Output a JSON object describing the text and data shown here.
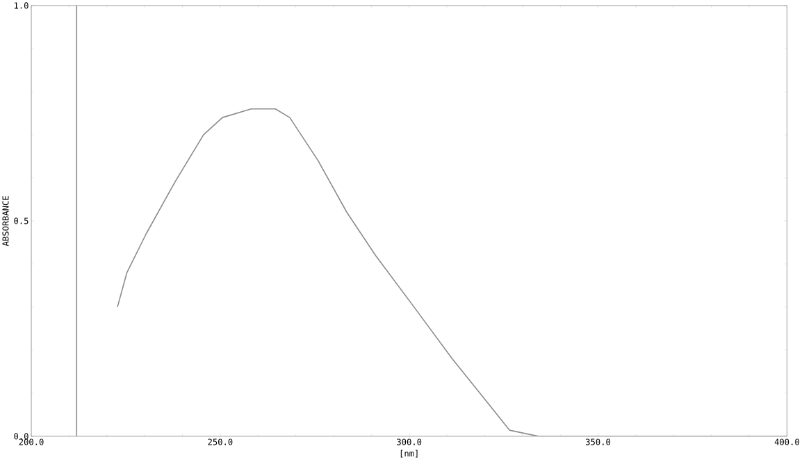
{
  "chart_data": {
    "type": "line",
    "xlabel": "[nm]",
    "ylabel": "ABSORBANCE",
    "xlim": [
      200,
      400
    ],
    "ylim": [
      0,
      1
    ],
    "xticks": [
      {
        "value": 200,
        "label": "200.0"
      },
      {
        "value": 250,
        "label": "250.0"
      },
      {
        "value": 300,
        "label": "300.0"
      },
      {
        "value": 350,
        "label": "350.0"
      },
      {
        "value": 400,
        "label": "400.0"
      }
    ],
    "yticks": [
      {
        "value": 0,
        "label": "0.0"
      },
      {
        "value": 0.5,
        "label": "0.5"
      },
      {
        "value": 1,
        "label": "1.0"
      }
    ],
    "grid": false,
    "marker": "none",
    "line_style": "solid",
    "series": [
      {
        "color": "#8c8c8c",
        "x": [
          212,
          212
        ],
        "values": [
          0.0,
          1.0
        ]
      },
      {
        "color": "#8c8c8c",
        "x": [
          222.8,
          225.3,
          230.4,
          238.0,
          245.6,
          250.6,
          258.2,
          264.6,
          268.4,
          275.9,
          283.5,
          291.1,
          301.3,
          311.4,
          321.5,
          326.6,
          334.2,
          344.3,
          400
        ],
        "values": [
          0.3,
          0.38,
          0.47,
          0.59,
          0.7,
          0.74,
          0.76,
          0.76,
          0.74,
          0.64,
          0.52,
          0.42,
          0.3,
          0.18,
          0.07,
          0.014,
          0.0,
          0.0,
          0.0
        ]
      }
    ]
  }
}
